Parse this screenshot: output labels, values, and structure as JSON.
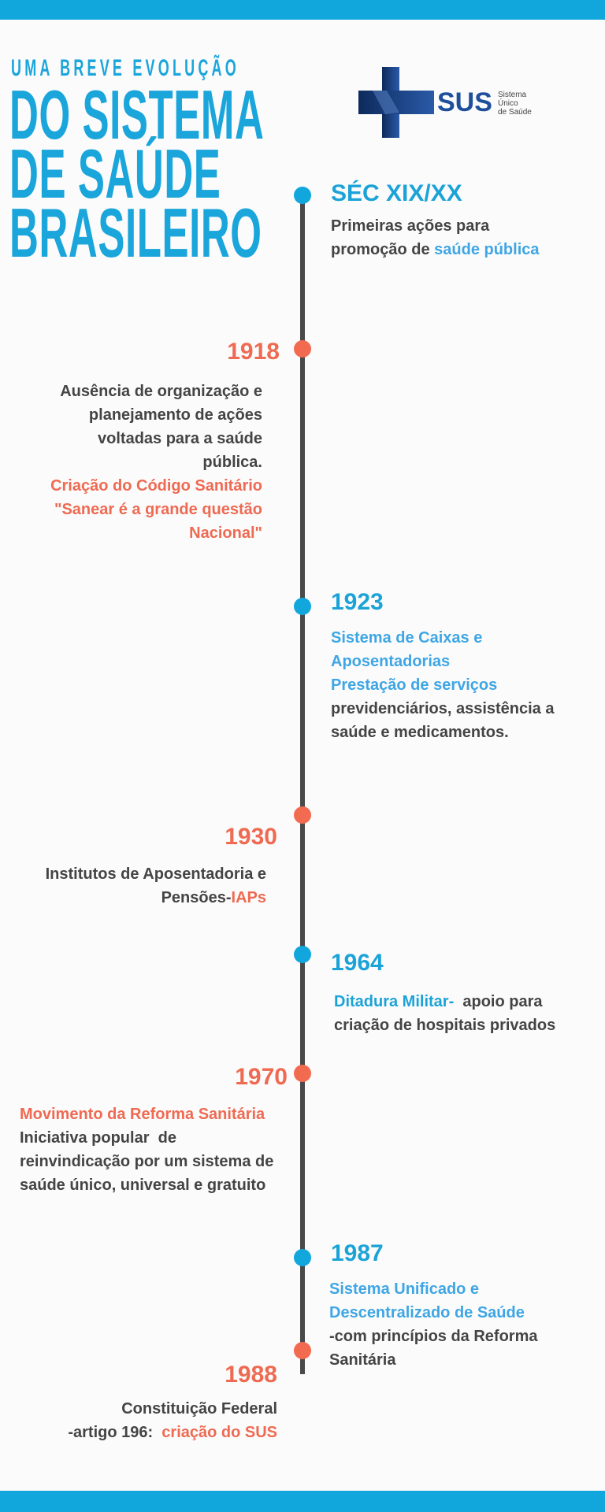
{
  "header": {
    "subtitle": "UMA BREVE EVOLUÇÃO",
    "title_lines": [
      "DO SISTEMA",
      "DE SAÚDE",
      "BRASILEIRO"
    ]
  },
  "logo": {
    "acronym": "SUS",
    "lines": [
      "Sistema",
      "Único",
      "de Saúde"
    ]
  },
  "colors": {
    "blue": "#12a7dc",
    "coral": "#f26b50",
    "text": "#444444",
    "line": "#4a4a4a"
  },
  "timeline": [
    {
      "year": "SÉC XIX/XX",
      "p1": "Primeiras ações para",
      "p2a": "promoção de ",
      "p2b": "saúde pública"
    },
    {
      "year": "1918",
      "l1": "Ausência de organização e",
      "l2": "planejamento de ações",
      "l3": "voltadas para a saúde",
      "l4": "pública.",
      "c1": "Criação do Código Sanitário",
      "c2": "\"Sanear é a grande questão",
      "c3": "Nacional\""
    },
    {
      "year": "1923",
      "b1": "Sistema de Caixas e",
      "b2": "Aposentadorias",
      "b3": "Prestação de serviços",
      "l1": "previdenciários, assistência a",
      "l2": "saúde e medicamentos."
    },
    {
      "year": "1930",
      "l1": "Institutos de Aposentadoria e",
      "l2a": "Pensões-",
      "l2b": "IAPs"
    },
    {
      "year": "1964",
      "b1": "Ditadura Militar-",
      "l1a": "  apoio para",
      "l2": "criação de hospitais privados"
    },
    {
      "year": "1970",
      "c1": "Movimento da Reforma Sanitária",
      "l1": "Iniciativa popular  de",
      "l2": "reinvindicação por um sistema de",
      "l3": "saúde único, universal e gratuito"
    },
    {
      "year": "1987",
      "b1": "Sistema Unificado e",
      "b2": "Descentralizado de Saúde",
      "l1": "-com princípios da Reforma",
      "l2": "Sanitária"
    },
    {
      "year": "1988",
      "l1": "Constituição Federal",
      "l2a": "-artigo 196:  ",
      "l2b": "criação do SUS"
    }
  ]
}
